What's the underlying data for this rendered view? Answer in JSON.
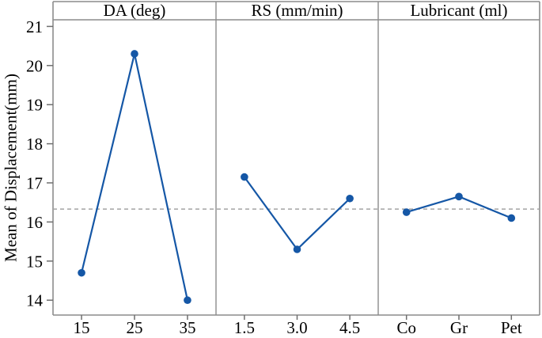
{
  "chart_data": {
    "type": "line",
    "title": "",
    "ylabel": "Mean of Displacement(mm)",
    "xlabel": "",
    "ylim": [
      13.62,
      21.17
    ],
    "yticks": [
      14,
      15,
      16,
      17,
      18,
      19,
      20,
      21
    ],
    "grid": false,
    "legend_position": "none",
    "reference_line": {
      "value": 16.33,
      "style": "dashed"
    },
    "panels": [
      {
        "title": "DA (deg)",
        "categories": [
          "15",
          "25",
          "35"
        ],
        "values": [
          14.7,
          20.3,
          14.0
        ]
      },
      {
        "title": "RS (mm/min)",
        "categories": [
          "1.5",
          "3.0",
          "4.5"
        ],
        "values": [
          17.15,
          15.3,
          16.6
        ]
      },
      {
        "title": "Lubricant (ml)",
        "categories": [
          "Co",
          "Gr",
          "Pet"
        ],
        "values": [
          16.25,
          16.65,
          16.1
        ]
      }
    ],
    "marker": "circle",
    "colors": {
      "series_line": "#1557a6",
      "marker_fill": "#1557a6",
      "reference_line": "#a3a3a3",
      "panel_border": "#8c8c8c",
      "tick": "#6e6e6e",
      "text": "#000000",
      "background": "#ffffff"
    }
  }
}
